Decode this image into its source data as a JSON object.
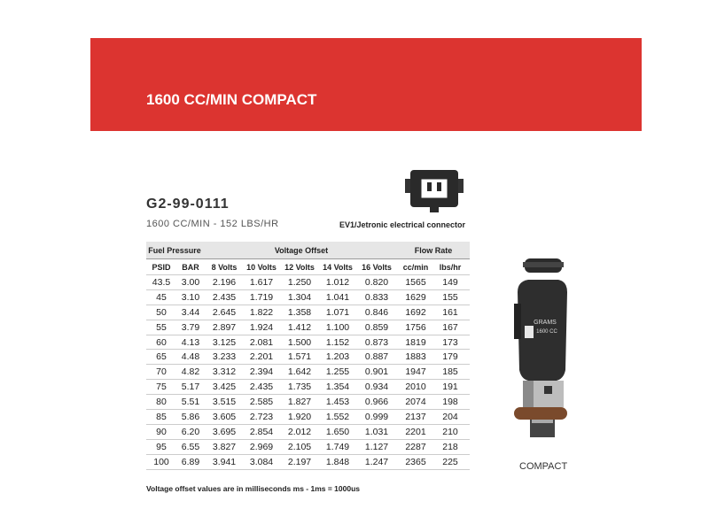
{
  "header": {
    "title": "1600 CC/MIN COMPACT"
  },
  "product": {
    "part_number": "G2-99-0111",
    "subtitle": "1600 CC/MIN - 152 LBS/HR",
    "connector_label": "EV1/Jetronic electrical connector"
  },
  "table": {
    "groups": [
      "Fuel Pressure",
      "Voltage Offset",
      "Flow Rate"
    ],
    "columns": [
      "PSID",
      "BAR",
      "8 Volts",
      "10 Volts",
      "12 Volts",
      "14 Volts",
      "16 Volts",
      "cc/min",
      "lbs/hr"
    ],
    "rows": [
      [
        "43.5",
        "3.00",
        "2.196",
        "1.617",
        "1.250",
        "1.012",
        "0.820",
        "1565",
        "149"
      ],
      [
        "45",
        "3.10",
        "2.435",
        "1.719",
        "1.304",
        "1.041",
        "0.833",
        "1629",
        "155"
      ],
      [
        "50",
        "3.44",
        "2.645",
        "1.822",
        "1.358",
        "1.071",
        "0.846",
        "1692",
        "161"
      ],
      [
        "55",
        "3.79",
        "2.897",
        "1.924",
        "1.412",
        "1.100",
        "0.859",
        "1756",
        "167"
      ],
      [
        "60",
        "4.13",
        "3.125",
        "2.081",
        "1.500",
        "1.152",
        "0.873",
        "1819",
        "173"
      ],
      [
        "65",
        "4.48",
        "3.233",
        "2.201",
        "1.571",
        "1.203",
        "0.887",
        "1883",
        "179"
      ],
      [
        "70",
        "4.82",
        "3.312",
        "2.394",
        "1.642",
        "1.255",
        "0.901",
        "1947",
        "185"
      ],
      [
        "75",
        "5.17",
        "3.425",
        "2.435",
        "1.735",
        "1.354",
        "0.934",
        "2010",
        "191"
      ],
      [
        "80",
        "5.51",
        "3.515",
        "2.585",
        "1.827",
        "1.453",
        "0.966",
        "2074",
        "198"
      ],
      [
        "85",
        "5.86",
        "3.605",
        "2.723",
        "1.920",
        "1.552",
        "0.999",
        "2137",
        "204"
      ],
      [
        "90",
        "6.20",
        "3.695",
        "2.854",
        "2.012",
        "1.650",
        "1.031",
        "2201",
        "210"
      ],
      [
        "95",
        "6.55",
        "3.827",
        "2.969",
        "2.105",
        "1.749",
        "1.127",
        "2287",
        "218"
      ],
      [
        "100",
        "6.89",
        "3.941",
        "3.084",
        "2.197",
        "1.848",
        "1.247",
        "2365",
        "225"
      ]
    ]
  },
  "footnote": "Voltage offset values are in milliseconds ms - 1ms = 1000us",
  "injector": {
    "brand": "GRAMS",
    "rating": "1600 CC",
    "caption": "COMPACT"
  }
}
